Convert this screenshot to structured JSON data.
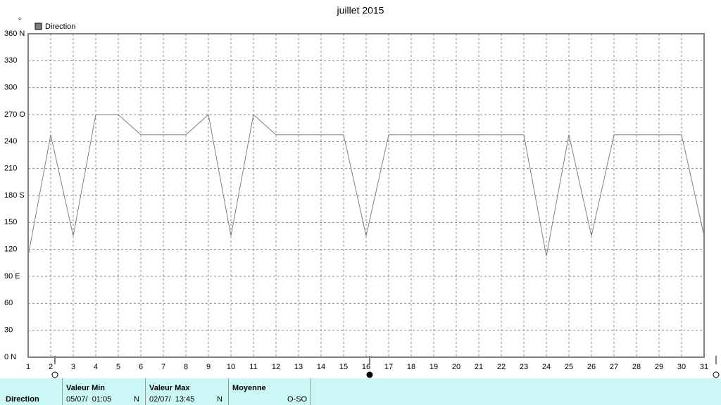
{
  "chart_data": {
    "type": "line",
    "title": "juillet 2015",
    "y_label": "°",
    "x": [
      1,
      2,
      3,
      4,
      5,
      6,
      7,
      8,
      9,
      10,
      11,
      12,
      13,
      14,
      15,
      16,
      17,
      18,
      19,
      20,
      21,
      22,
      23,
      24,
      25,
      26,
      27,
      28,
      29,
      30,
      31
    ],
    "series": [
      {
        "name": "Direction",
        "color": "#808080",
        "values": [
          112.5,
          247.5,
          135,
          270,
          270,
          247.5,
          247.5,
          247.5,
          270,
          135,
          270,
          247.5,
          247.5,
          247.5,
          247.5,
          135,
          247.5,
          247.5,
          247.5,
          247.5,
          247.5,
          247.5,
          247.5,
          112.5,
          247.5,
          135,
          247.5,
          247.5,
          247.5,
          247.5,
          135
        ]
      }
    ],
    "xlim": [
      1,
      31
    ],
    "xticks": [
      1,
      2,
      3,
      4,
      5,
      6,
      7,
      8,
      9,
      10,
      11,
      12,
      13,
      14,
      15,
      16,
      17,
      18,
      19,
      20,
      21,
      22,
      23,
      24,
      25,
      26,
      27,
      28,
      29,
      30,
      31
    ],
    "ylim": [
      0,
      360
    ],
    "yticks": [
      {
        "value": 0,
        "label": "0 N"
      },
      30,
      60,
      {
        "value": 90,
        "label": "90 E"
      },
      120,
      150,
      {
        "value": 180,
        "label": "180 S"
      },
      210,
      240,
      {
        "value": 270,
        "label": "270 O"
      },
      300,
      330,
      {
        "value": 360,
        "label": "360 N"
      }
    ],
    "grid": true,
    "legend": "top-left"
  },
  "stats": {
    "label": "Direction",
    "min": {
      "title": "Valeur Min",
      "time": "05/07/  01:05",
      "dir": "N"
    },
    "max": {
      "title": "Valeur Max",
      "time": "02/07/  13:45",
      "dir": "N"
    },
    "mean": {
      "title": "Moyenne",
      "dir": "O-SO"
    }
  }
}
